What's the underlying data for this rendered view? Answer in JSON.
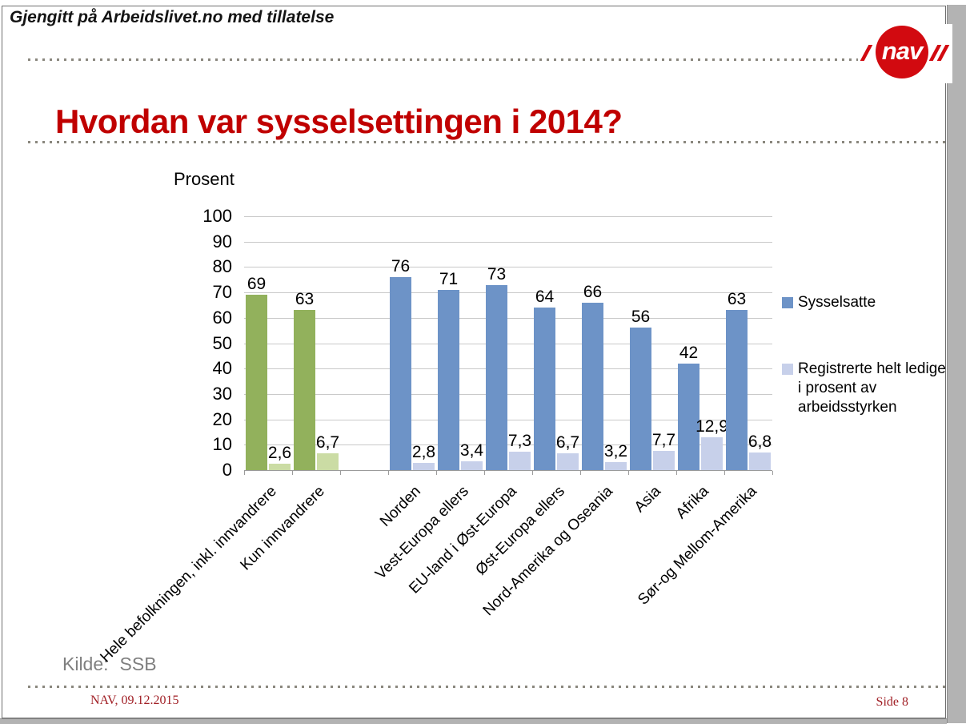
{
  "header": {
    "permission_note": "Gjengitt på Arbeidslivet.no med tillatelse",
    "logo_text": "nav"
  },
  "slide": {
    "title": "Hvordan var sysselsettingen i 2014?",
    "source_label": "Kilde:",
    "source_value": "SSB"
  },
  "footer": {
    "left": "NAV, 09.12.2015",
    "right": "Side 8"
  },
  "chart_data": {
    "type": "bar",
    "title": "Hvordan var sysselsettingen i 2014?",
    "ylabel": "Prosent",
    "xlabel": "",
    "ylim": [
      0,
      100
    ],
    "ytick_step": 10,
    "grid": true,
    "legend_position": "right",
    "green_category_count": 2,
    "gap_slot": 2,
    "categories": [
      "Hele befolkningen, inkl. innvandrere",
      "Kun innvandrere",
      "Norden",
      "Vest-Europa ellers",
      "EU-land i Øst-Europa",
      "Øst-Europa ellers",
      "Nord-Amerika og Oseania",
      "Asia",
      "Afrika",
      "Sør-og Mellom-Amerika"
    ],
    "series": [
      {
        "name": "Sysselsatte",
        "values": [
          69,
          63,
          76,
          71,
          73,
          64,
          66,
          56,
          42,
          63
        ],
        "labels": [
          "69",
          "63",
          "76",
          "71",
          "73",
          "64",
          "66",
          "56",
          "42",
          "63"
        ]
      },
      {
        "name": "Registrerte helt ledige i prosent av arbeidsstyrken",
        "values": [
          2.6,
          6.7,
          2.8,
          3.4,
          7.3,
          6.7,
          3.2,
          7.7,
          12.9,
          6.8
        ],
        "labels": [
          "2,6",
          "6,7",
          "2,8",
          "3,4",
          "7,3",
          "6,7",
          "3,2",
          "7,7",
          "12,9",
          "6,8"
        ]
      }
    ],
    "colors": {
      "sysselsatte_blue": "#6d93c7",
      "ledige_blue": "#c7d0ea",
      "sysselsatte_green": "#92b15c",
      "ledige_green": "#cbdca4",
      "gridline": "#c9c9c9",
      "axis": "#9b9b9b",
      "title_red": "#c00000",
      "logo_red": "#d20a10",
      "footer_red": "#a12026",
      "source_gray": "#7f7f7f"
    }
  }
}
